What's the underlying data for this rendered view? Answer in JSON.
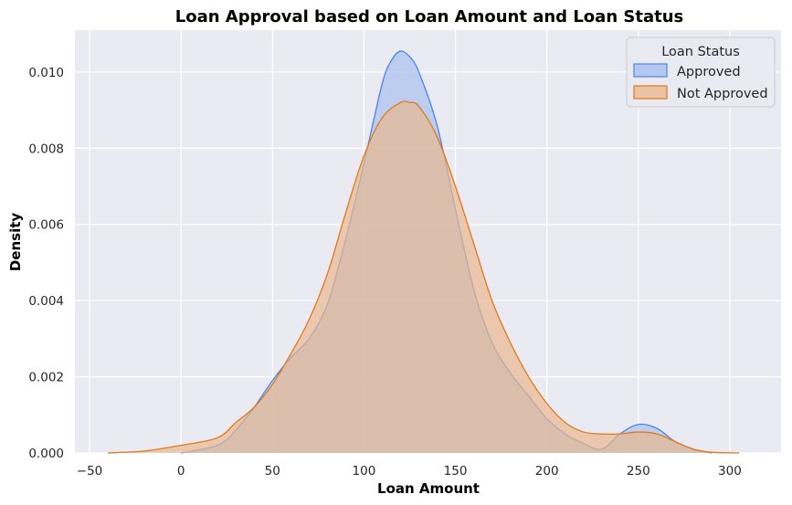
{
  "chart_data": {
    "type": "area",
    "title": "Loan Approval based on Loan Amount and Loan Status",
    "xlabel": "Loan Amount",
    "ylabel": "Density",
    "xlim": [
      -58,
      328
    ],
    "ylim": [
      0,
      0.0111
    ],
    "xticks": [
      -50,
      0,
      50,
      100,
      150,
      200,
      250,
      300
    ],
    "yticks": [
      0.0,
      0.002,
      0.004,
      0.006,
      0.008,
      0.01
    ],
    "xtick_labels": [
      "−50",
      "0",
      "50",
      "100",
      "150",
      "200",
      "250",
      "300"
    ],
    "ytick_labels": [
      "0.000",
      "0.002",
      "0.004",
      "0.006",
      "0.008",
      "0.010"
    ],
    "grid": true,
    "legend": {
      "title": "Loan Status",
      "placement": "top-right"
    },
    "series": [
      {
        "name": "Approved",
        "color": "#4a86e8",
        "fill": "#a8c1ef",
        "x": [
          0,
          20,
          30,
          40,
          50,
          60,
          70,
          80,
          90,
          100,
          110,
          115,
          120,
          125,
          130,
          140,
          150,
          160,
          170,
          180,
          190,
          200,
          210,
          220,
          230,
          240,
          250,
          260,
          270,
          280,
          290
        ],
        "y": [
          0.0,
          0.0002,
          0.0006,
          0.0012,
          0.0019,
          0.0025,
          0.003,
          0.0039,
          0.0056,
          0.0076,
          0.0097,
          0.0103,
          0.01055,
          0.0104,
          0.01,
          0.0086,
          0.0064,
          0.0043,
          0.0029,
          0.0021,
          0.0015,
          0.0009,
          0.0005,
          0.00025,
          0.0001,
          0.0005,
          0.00075,
          0.00065,
          0.0003,
          0.0001,
          0.0
        ]
      },
      {
        "name": "Not Approved",
        "color": "#e07a19",
        "fill": "#eab890",
        "x": [
          -40,
          -20,
          0,
          20,
          30,
          40,
          50,
          60,
          70,
          80,
          90,
          100,
          110,
          120,
          125,
          130,
          140,
          150,
          160,
          170,
          180,
          190,
          200,
          210,
          220,
          230,
          240,
          250,
          260,
          270,
          280,
          290,
          305
        ],
        "y": [
          0.0,
          5e-05,
          0.0002,
          0.0004,
          0.0008,
          0.0012,
          0.0018,
          0.0026,
          0.0035,
          0.0047,
          0.0063,
          0.0078,
          0.0088,
          0.0092,
          0.0092,
          0.0091,
          0.0083,
          0.007,
          0.0055,
          0.004,
          0.0029,
          0.002,
          0.0013,
          0.0008,
          0.00055,
          0.0005,
          0.0005,
          0.00055,
          0.0005,
          0.0003,
          0.0001,
          2e-05,
          0.0
        ]
      }
    ]
  }
}
